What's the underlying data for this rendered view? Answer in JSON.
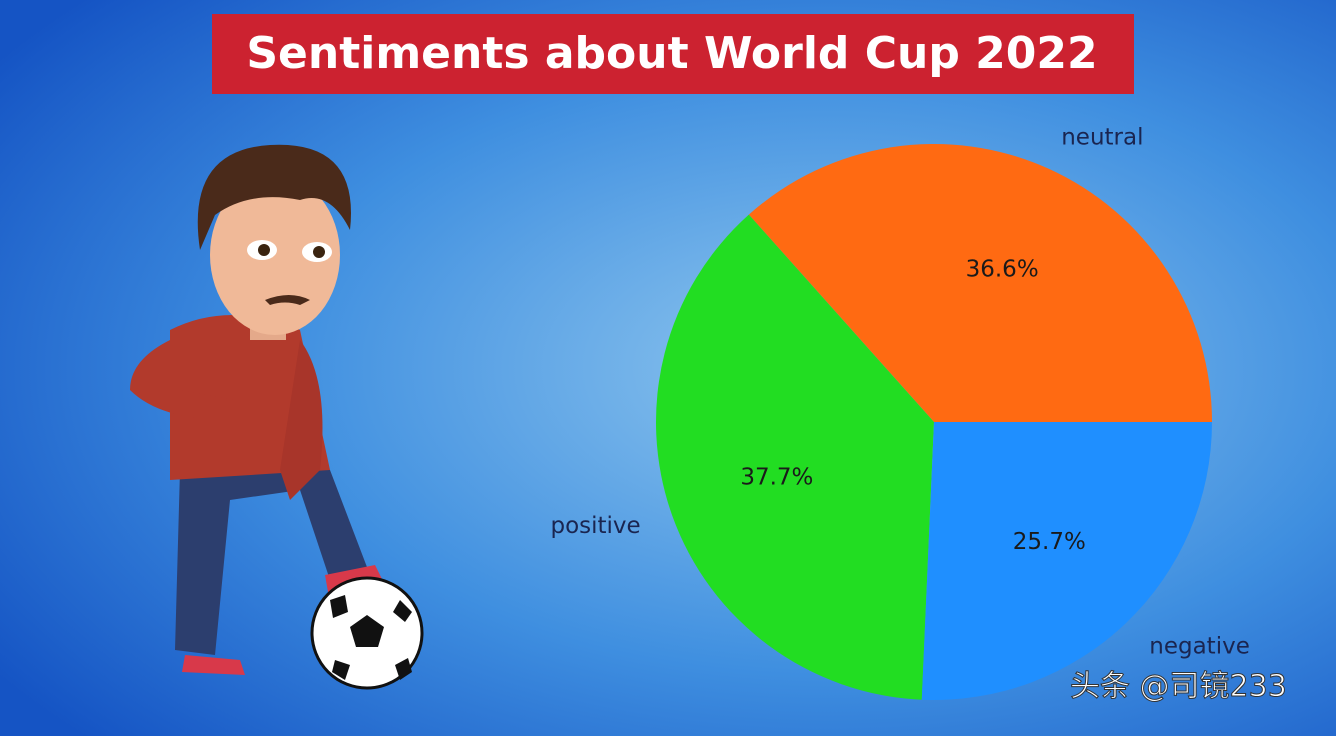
{
  "chart_data": {
    "type": "pie",
    "title": "Sentiments about World Cup 2022",
    "categories": [
      "neutral",
      "positive",
      "negative"
    ],
    "values": [
      36.6,
      37.7,
      25.7
    ],
    "value_labels": [
      "36.6%",
      "37.7%",
      "25.7%"
    ],
    "colors": [
      "#ff6a12",
      "#22dd22",
      "#1f8fff"
    ],
    "start_angle": 0
  },
  "watermark": "头条 @司镜233"
}
